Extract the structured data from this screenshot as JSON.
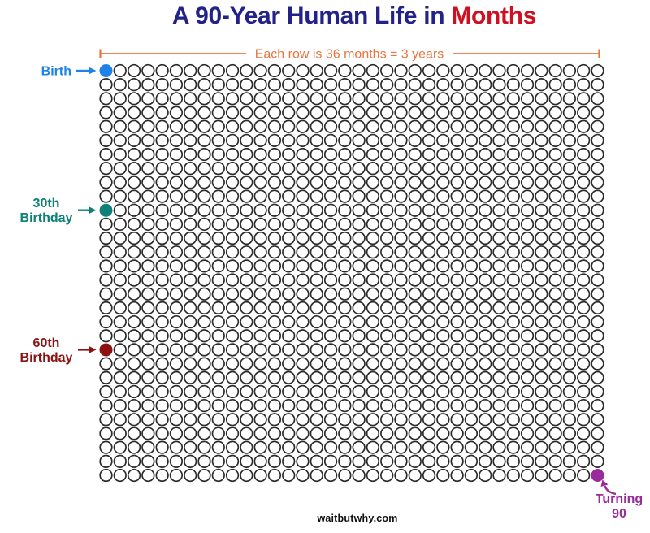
{
  "title": {
    "prefix": "A 90-Year Human Life in",
    "highlight": "Months"
  },
  "annotation": {
    "label": "Each row is 36 months = 3 years"
  },
  "labels": {
    "birth": "Birth",
    "thirtieth": {
      "line1": "30th",
      "line2": "Birthday"
    },
    "sixtieth": {
      "line1": "60th",
      "line2": "Birthday"
    },
    "turning_90": {
      "line1": "Turning",
      "line2": "90"
    }
  },
  "footer": {
    "site": "waitbutwhy.com"
  },
  "colors": {
    "title_navy": "#232288",
    "title_red": "#cc1122",
    "annotation_orange": "#e8743e",
    "birth_blue": "#1e82e8",
    "birthday30_teal": "#0d8077",
    "birthday60_dark_red": "#8e1111",
    "turning90_purple": "#9a2b9b",
    "circle_outline": "#2b2b2b",
    "circle_fill": "#ffffff"
  },
  "chart_data": {
    "type": "unit_grid",
    "title": "A 90-Year Human Life in Months",
    "unit": "1 circle = 1 month",
    "rows": 30,
    "cols": 36,
    "total_units": 1080,
    "years_total": 90,
    "row_meaning": "Each row is 36 months = 3 years",
    "milestones": [
      {
        "label": "Birth",
        "month": 1,
        "row": 1,
        "col": 1,
        "color": "#1e82e8"
      },
      {
        "label": "30th Birthday",
        "month": 361,
        "row": 11,
        "col": 1,
        "color": "#0d8077"
      },
      {
        "label": "60th Birthday",
        "month": 721,
        "row": 21,
        "col": 1,
        "color": "#8e1111"
      },
      {
        "label": "Turning 90",
        "month": 1080,
        "row": 30,
        "col": 36,
        "color": "#9a2b9b"
      }
    ]
  }
}
